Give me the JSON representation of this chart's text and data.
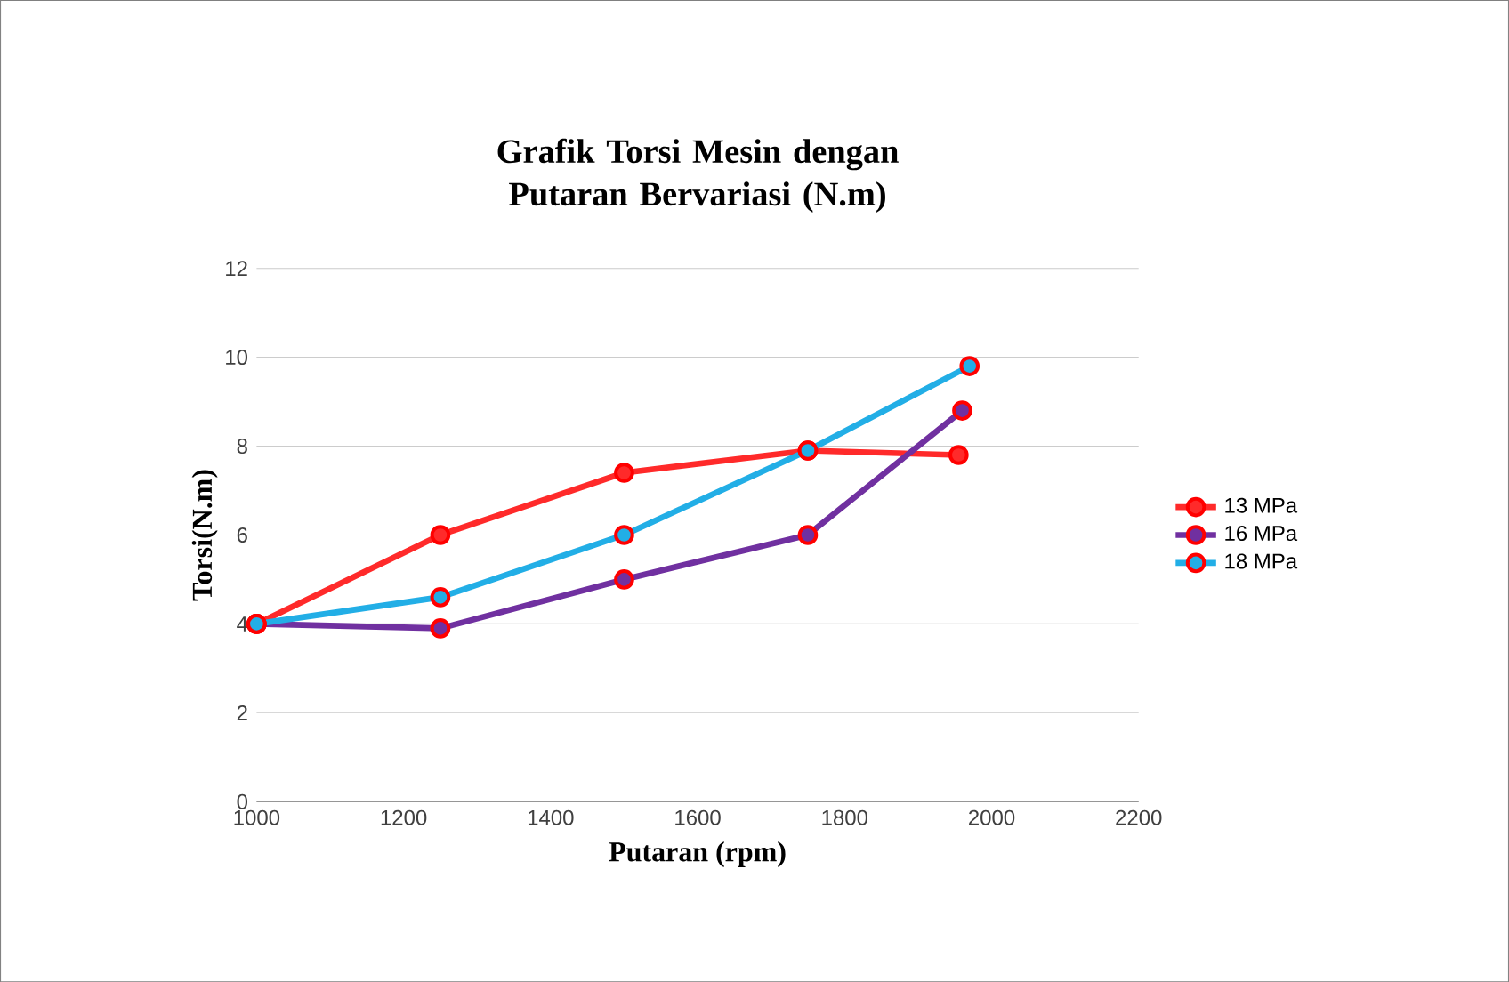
{
  "chart_data": {
    "type": "line",
    "title": "Grafik Torsi Mesin dengan Putaran Bervariasi (N.m)",
    "xlabel": "Putaran (rpm)",
    "ylabel": "Torsi(N.m)",
    "xlim": [
      1000,
      2200
    ],
    "xticks": [
      1000,
      1200,
      1400,
      1600,
      1800,
      2000,
      2200
    ],
    "ylim": [
      0,
      12
    ],
    "yticks": [
      0,
      2,
      4,
      6,
      8,
      10,
      12
    ],
    "grid": "y",
    "legend": "right",
    "marker": "circle",
    "series": [
      {
        "name": "13 MPa",
        "color": "#ff2a2a",
        "x": [
          1000,
          1250,
          1500,
          1750,
          1955
        ],
        "values": [
          4,
          6,
          7.4,
          7.9,
          7.8
        ]
      },
      {
        "name": "16 MPa",
        "color": "#7030a0",
        "x": [
          1000,
          1250,
          1500,
          1750,
          1960
        ],
        "values": [
          4,
          3.9,
          5,
          6,
          8.8
        ]
      },
      {
        "name": "18 MPa",
        "color": "#22aee6",
        "x": [
          1000,
          1250,
          1500,
          1750,
          1970
        ],
        "values": [
          4,
          4.6,
          6,
          7.9,
          9.8
        ]
      }
    ]
  }
}
